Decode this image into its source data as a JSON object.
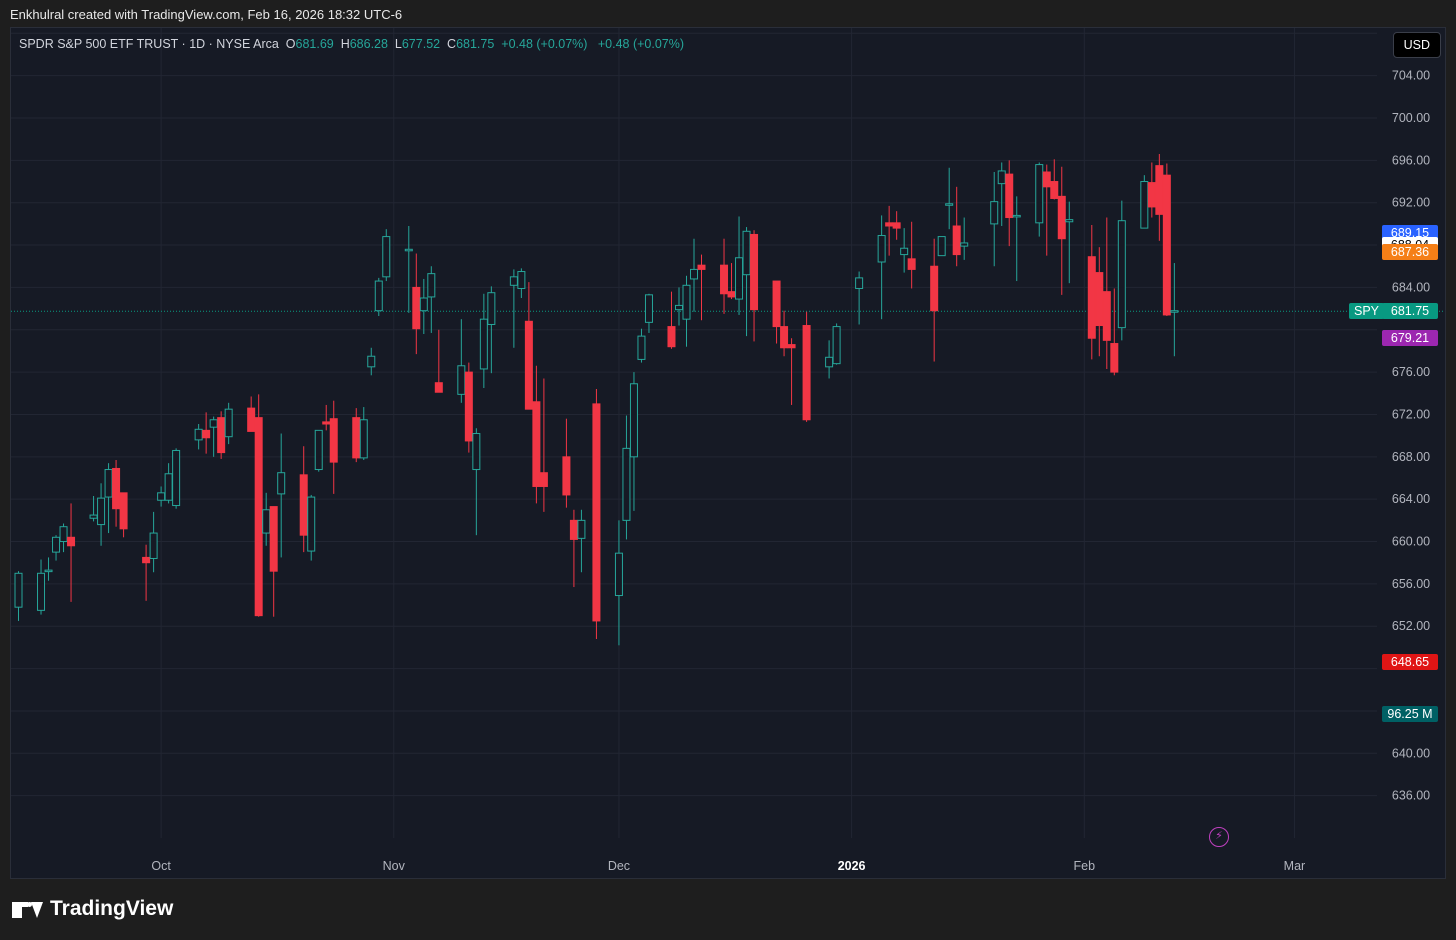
{
  "credit": "Enkhulral created with TradingView.com, Feb 16, 2026 18:32 UTC-6",
  "legend": {
    "title": "SPDR S&P 500 ETF TRUST · 1D · NYSE Arca",
    "o_label": "O",
    "o_value": "681.69",
    "h_label": "H",
    "h_value": "686.28",
    "l_label": "L",
    "l_value": "677.52",
    "c_label": "C",
    "c_value": "681.75",
    "change1": "+0.48 (+0.07%)",
    "change2": "+0.48 (+0.07%)"
  },
  "currency": "USD",
  "brand": "TradingView",
  "colors": {
    "up": "#26a69a",
    "down": "#f23645",
    "background": "#161a25",
    "grid": "#222633"
  },
  "price_tags": [
    {
      "label": "689.15",
      "value": 689.15,
      "bg": "#2962ff",
      "fg": "#ffffff"
    },
    {
      "label": "688.04",
      "value": 688.04,
      "bg": "#ffffff",
      "fg": "#000000"
    },
    {
      "label": "687.36",
      "value": 687.36,
      "bg": "#f57f17",
      "fg": "#ffffff"
    },
    {
      "label": "681.75",
      "value": 681.75,
      "bg": "#089981",
      "fg": "#ffffff",
      "name": "SPY"
    },
    {
      "label": "679.21",
      "value": 679.21,
      "bg": "#9c27b0",
      "fg": "#ffffff"
    },
    {
      "label": "648.65",
      "value": 648.65,
      "bg": "#e01515",
      "fg": "#ffffff"
    },
    {
      "label": "96.25 M",
      "value": 643.7,
      "bg": "#006064",
      "fg": "#ffffff"
    }
  ],
  "chart_data": {
    "type": "candlestick",
    "title": "SPDR S&P 500 ETF TRUST · 1D · NYSE Arca",
    "y_range": [
      632.0,
      708.5
    ],
    "y_ticks": [
      636,
      640,
      652,
      656,
      660,
      664,
      668,
      672,
      676,
      684,
      692,
      696,
      700,
      704
    ],
    "y_tick_labels": [
      "636.00",
      "640.00",
      "652.00",
      "656.00",
      "660.00",
      "664.00",
      "668.00",
      "672.00",
      "676.00",
      "684.00",
      "692.00",
      "696.00",
      "700.00",
      "704.00"
    ],
    "x_ticks": [
      {
        "label": "Oct",
        "date": "2025-10-01"
      },
      {
        "label": "Nov",
        "date": "2025-11-01"
      },
      {
        "label": "Dec",
        "date": "2025-12-01"
      },
      {
        "label": "2026",
        "date": "2026-01-01",
        "bold": true
      },
      {
        "label": "Feb",
        "date": "2026-02-01"
      },
      {
        "label": "Mar",
        "date": "2026-03-01"
      }
    ],
    "x_range": [
      "2025-09-11",
      "2026-03-12"
    ],
    "last_price": 681.75,
    "candles": [
      {
        "d": "2025-09-12",
        "o": 653.8,
        "h": 657.2,
        "l": 652.5,
        "c": 657.0
      },
      {
        "d": "2025-09-15",
        "o": 653.5,
        "h": 658.3,
        "l": 653.1,
        "c": 657.0
      },
      {
        "d": "2025-09-16",
        "o": 657.2,
        "h": 658.5,
        "l": 656.3,
        "c": 657.3
      },
      {
        "d": "2025-09-17",
        "o": 659.0,
        "h": 660.6,
        "l": 658.2,
        "c": 660.4
      },
      {
        "d": "2025-09-18",
        "o": 660.0,
        "h": 661.7,
        "l": 659.0,
        "c": 661.4
      },
      {
        "d": "2025-09-19",
        "o": 660.4,
        "h": 663.6,
        "l": 654.3,
        "c": 659.6
      },
      {
        "d": "2025-09-22",
        "o": 662.2,
        "h": 664.3,
        "l": 661.9,
        "c": 662.5
      },
      {
        "d": "2025-09-23",
        "o": 661.6,
        "h": 665.5,
        "l": 659.6,
        "c": 664.1
      },
      {
        "d": "2025-09-24",
        "o": 664.2,
        "h": 667.4,
        "l": 660.8,
        "c": 666.8
      },
      {
        "d": "2025-09-25",
        "o": 666.9,
        "h": 667.7,
        "l": 661.4,
        "c": 663.1
      },
      {
        "d": "2025-09-26",
        "o": 664.6,
        "h": 664.6,
        "l": 660.4,
        "c": 661.2
      },
      {
        "d": "2025-09-29",
        "o": 658.5,
        "h": 659.7,
        "l": 654.4,
        "c": 658.0
      },
      {
        "d": "2025-09-30",
        "o": 658.4,
        "h": 662.8,
        "l": 657.1,
        "c": 660.8
      },
      {
        "d": "2025-10-01",
        "o": 663.9,
        "h": 665.2,
        "l": 663.3,
        "c": 664.6
      },
      {
        "d": "2025-10-02",
        "o": 663.9,
        "h": 667.4,
        "l": 663.6,
        "c": 666.4
      },
      {
        "d": "2025-10-03",
        "o": 663.4,
        "h": 668.8,
        "l": 663.1,
        "c": 668.6
      },
      {
        "d": "2025-10-06",
        "o": 669.6,
        "h": 671.1,
        "l": 668.7,
        "c": 670.6
      },
      {
        "d": "2025-10-07",
        "o": 670.5,
        "h": 672.2,
        "l": 668.3,
        "c": 669.8
      },
      {
        "d": "2025-10-08",
        "o": 670.8,
        "h": 671.8,
        "l": 668.0,
        "c": 671.5
      },
      {
        "d": "2025-10-09",
        "o": 671.7,
        "h": 672.3,
        "l": 667.8,
        "c": 668.4
      },
      {
        "d": "2025-10-10",
        "o": 669.9,
        "h": 673.1,
        "l": 669.2,
        "c": 672.5
      },
      {
        "d": "2025-10-13",
        "o": 672.6,
        "h": 673.7,
        "l": 670.6,
        "c": 670.4
      },
      {
        "d": "2025-10-14",
        "o": 671.7,
        "h": 673.9,
        "l": 652.9,
        "c": 653.0
      },
      {
        "d": "2025-10-15",
        "o": 660.8,
        "h": 664.6,
        "l": 659.6,
        "c": 663.0
      },
      {
        "d": "2025-10-16",
        "o": 663.3,
        "h": 662.7,
        "l": 652.9,
        "c": 657.2
      },
      {
        "d": "2025-10-17",
        "o": 664.5,
        "h": 670.2,
        "l": 658.5,
        "c": 666.5
      },
      {
        "d": "2025-10-20",
        "o": 666.3,
        "h": 669.0,
        "l": 659.0,
        "c": 660.6
      },
      {
        "d": "2025-10-21",
        "o": 659.1,
        "h": 664.4,
        "l": 658.2,
        "c": 664.2
      },
      {
        "d": "2025-10-22",
        "o": 666.8,
        "h": 670.5,
        "l": 666.6,
        "c": 670.5
      },
      {
        "d": "2025-10-23",
        "o": 671.3,
        "h": 672.9,
        "l": 670.5,
        "c": 671.1
      },
      {
        "d": "2025-10-24",
        "o": 671.6,
        "h": 673.3,
        "l": 664.5,
        "c": 667.5
      },
      {
        "d": "2025-10-27",
        "o": 671.7,
        "h": 672.6,
        "l": 667.5,
        "c": 667.9
      },
      {
        "d": "2025-10-28",
        "o": 667.9,
        "h": 672.7,
        "l": 667.7,
        "c": 671.5
      },
      {
        "d": "2025-10-29",
        "o": 676.5,
        "h": 678.3,
        "l": 675.7,
        "c": 677.5
      },
      {
        "d": "2025-10-30",
        "o": 681.8,
        "h": 684.9,
        "l": 681.3,
        "c": 684.6
      },
      {
        "d": "2025-10-31",
        "o": 685.0,
        "h": 689.5,
        "l": 684.6,
        "c": 688.8
      },
      {
        "d": "2025-11-03",
        "o": 687.6,
        "h": 689.8,
        "l": 681.6,
        "c": 687.6
      },
      {
        "d": "2025-11-04",
        "o": 684.0,
        "h": 687.2,
        "l": 677.7,
        "c": 680.1
      },
      {
        "d": "2025-11-05",
        "o": 681.8,
        "h": 684.8,
        "l": 679.6,
        "c": 683.0
      },
      {
        "d": "2025-11-06",
        "o": 683.1,
        "h": 686.0,
        "l": 679.7,
        "c": 685.3
      },
      {
        "d": "2025-11-07",
        "o": 675.0,
        "h": 680.0,
        "l": 674.1,
        "c": 674.1
      },
      {
        "d": "2025-11-10",
        "o": 673.9,
        "h": 681.0,
        "l": 673.1,
        "c": 676.6
      },
      {
        "d": "2025-11-11",
        "o": 676.0,
        "h": 676.9,
        "l": 668.4,
        "c": 669.5
      },
      {
        "d": "2025-11-12",
        "o": 666.8,
        "h": 670.7,
        "l": 660.6,
        "c": 670.2
      },
      {
        "d": "2025-11-13",
        "o": 676.3,
        "h": 683.4,
        "l": 674.5,
        "c": 681.0
      },
      {
        "d": "2025-11-14",
        "o": 680.5,
        "h": 684.1,
        "l": 675.9,
        "c": 683.5
      },
      {
        "d": "2025-11-17",
        "o": 684.2,
        "h": 685.7,
        "l": 678.3,
        "c": 685.0
      },
      {
        "d": "2025-11-18",
        "o": 683.9,
        "h": 685.8,
        "l": 683.0,
        "c": 685.5
      },
      {
        "d": "2025-11-19",
        "o": 680.8,
        "h": 684.5,
        "l": 672.8,
        "c": 672.5
      },
      {
        "d": "2025-11-20",
        "o": 673.2,
        "h": 676.6,
        "l": 663.6,
        "c": 665.2
      },
      {
        "d": "2025-11-21",
        "o": 666.5,
        "h": 675.4,
        "l": 662.8,
        "c": 665.2
      },
      {
        "d": "2025-11-24",
        "o": 668.0,
        "h": 671.6,
        "l": 663.2,
        "c": 664.4
      },
      {
        "d": "2025-11-25",
        "o": 662.0,
        "h": 663.0,
        "l": 655.7,
        "c": 660.2
      },
      {
        "d": "2025-11-26",
        "o": 660.3,
        "h": 663.0,
        "l": 657.1,
        "c": 662.0
      },
      {
        "d": "2025-11-28",
        "o": 673.0,
        "h": 674.4,
        "l": 650.8,
        "c": 652.5
      },
      {
        "d": "2025-12-01",
        "o": 654.9,
        "h": 662.0,
        "l": 650.2,
        "c": 658.9
      },
      {
        "d": "2025-12-02",
        "o": 662.0,
        "h": 671.9,
        "l": 660.2,
        "c": 668.8
      },
      {
        "d": "2025-12-03",
        "o": 668.0,
        "h": 676.0,
        "l": 662.9,
        "c": 674.9
      },
      {
        "d": "2025-12-04",
        "o": 677.2,
        "h": 680.1,
        "l": 676.9,
        "c": 679.4
      },
      {
        "d": "2025-12-05",
        "o": 680.7,
        "h": 683.4,
        "l": 679.7,
        "c": 683.3
      },
      {
        "d": "2025-12-08",
        "o": 680.3,
        "h": 683.6,
        "l": 678.2,
        "c": 678.4
      },
      {
        "d": "2025-12-09",
        "o": 681.9,
        "h": 684.0,
        "l": 680.4,
        "c": 682.3
      },
      {
        "d": "2025-12-10",
        "o": 681.0,
        "h": 685.1,
        "l": 678.4,
        "c": 684.2
      },
      {
        "d": "2025-12-11",
        "o": 684.8,
        "h": 688.6,
        "l": 681.7,
        "c": 685.7
      },
      {
        "d": "2025-12-12",
        "o": 686.1,
        "h": 687.1,
        "l": 680.9,
        "c": 685.7
      },
      {
        "d": "2025-12-15",
        "o": 686.1,
        "h": 688.6,
        "l": 681.5,
        "c": 683.4
      },
      {
        "d": "2025-12-16",
        "o": 683.6,
        "h": 686.3,
        "l": 682.9,
        "c": 683.1
      },
      {
        "d": "2025-12-17",
        "o": 682.9,
        "h": 690.7,
        "l": 681.4,
        "c": 686.8
      },
      {
        "d": "2025-12-18",
        "o": 685.2,
        "h": 689.7,
        "l": 679.4,
        "c": 689.3
      },
      {
        "d": "2025-12-19",
        "o": 689.0,
        "h": 689.4,
        "l": 678.9,
        "c": 681.9
      },
      {
        "d": "2025-12-22",
        "o": 684.6,
        "h": 684.6,
        "l": 678.7,
        "c": 680.3
      },
      {
        "d": "2025-12-23",
        "o": 680.3,
        "h": 681.8,
        "l": 677.5,
        "c": 678.3
      },
      {
        "d": "2025-12-24",
        "o": 678.6,
        "h": 679.2,
        "l": 672.9,
        "c": 678.3
      },
      {
        "d": "2025-12-26",
        "o": 680.4,
        "h": 681.7,
        "l": 671.3,
        "c": 671.5
      },
      {
        "d": "2025-12-29",
        "o": 676.5,
        "h": 679.0,
        "l": 675.4,
        "c": 677.4
      },
      {
        "d": "2025-12-30",
        "o": 676.8,
        "h": 680.6,
        "l": 676.7,
        "c": 680.3
      },
      {
        "d": "2026-01-02",
        "o": 683.9,
        "h": 685.5,
        "l": 680.5,
        "c": 684.9
      },
      {
        "d": "2026-01-05",
        "o": 686.4,
        "h": 690.8,
        "l": 681.0,
        "c": 688.9
      },
      {
        "d": "2026-01-06",
        "o": 690.1,
        "h": 691.7,
        "l": 687.0,
        "c": 689.8
      },
      {
        "d": "2026-01-07",
        "o": 690.1,
        "h": 691.2,
        "l": 688.5,
        "c": 689.6
      },
      {
        "d": "2026-01-08",
        "o": 687.1,
        "h": 689.6,
        "l": 685.4,
        "c": 687.7
      },
      {
        "d": "2026-01-09",
        "o": 686.7,
        "h": 690.2,
        "l": 683.9,
        "c": 685.7
      },
      {
        "d": "2026-01-12",
        "o": 686.0,
        "h": 688.6,
        "l": 677.0,
        "c": 681.8
      },
      {
        "d": "2026-01-13",
        "o": 687.0,
        "h": 688.8,
        "l": 687.0,
        "c": 688.8
      },
      {
        "d": "2026-01-14",
        "o": 691.9,
        "h": 695.3,
        "l": 689.5,
        "c": 691.9
      },
      {
        "d": "2026-01-15",
        "o": 689.8,
        "h": 693.5,
        "l": 686.0,
        "c": 687.1
      },
      {
        "d": "2026-01-16",
        "o": 687.9,
        "h": 690.6,
        "l": 686.6,
        "c": 688.2
      },
      {
        "d": "2026-01-20",
        "o": 690.0,
        "h": 694.9,
        "l": 686.0,
        "c": 692.1
      },
      {
        "d": "2026-01-21",
        "o": 693.8,
        "h": 695.8,
        "l": 689.8,
        "c": 695.0
      },
      {
        "d": "2026-01-22",
        "o": 694.7,
        "h": 696.0,
        "l": 687.9,
        "c": 690.6
      },
      {
        "d": "2026-01-23",
        "o": 690.8,
        "h": 692.6,
        "l": 684.6,
        "c": 690.8
      },
      {
        "d": "2026-01-26",
        "o": 690.1,
        "h": 695.8,
        "l": 688.8,
        "c": 695.6
      },
      {
        "d": "2026-01-27",
        "o": 694.9,
        "h": 695.6,
        "l": 687.0,
        "c": 693.5
      },
      {
        "d": "2026-01-28",
        "o": 694.0,
        "h": 696.1,
        "l": 692.3,
        "c": 692.4
      },
      {
        "d": "2026-01-29",
        "o": 692.6,
        "h": 695.4,
        "l": 683.3,
        "c": 688.6
      },
      {
        "d": "2026-01-30",
        "o": 690.2,
        "h": 692.1,
        "l": 684.4,
        "c": 690.4
      },
      {
        "d": "2026-02-02",
        "o": 686.9,
        "h": 689.9,
        "l": 677.2,
        "c": 679.2
      },
      {
        "d": "2026-02-03",
        "o": 685.4,
        "h": 687.8,
        "l": 677.5,
        "c": 680.4
      },
      {
        "d": "2026-02-04",
        "o": 683.6,
        "h": 690.6,
        "l": 676.3,
        "c": 679.0
      },
      {
        "d": "2026-02-05",
        "o": 678.7,
        "h": 683.9,
        "l": 675.7,
        "c": 676.0
      },
      {
        "d": "2026-02-06",
        "o": 680.2,
        "h": 692.2,
        "l": 679.0,
        "c": 690.3
      },
      {
        "d": "2026-02-09",
        "o": 689.6,
        "h": 694.6,
        "l": 689.7,
        "c": 694.0
      },
      {
        "d": "2026-02-10",
        "o": 693.9,
        "h": 695.8,
        "l": 690.6,
        "c": 691.6
      },
      {
        "d": "2026-02-11",
        "o": 695.5,
        "h": 696.6,
        "l": 688.4,
        "c": 690.9
      },
      {
        "d": "2026-02-12",
        "o": 694.6,
        "h": 695.7,
        "l": 681.3,
        "c": 681.4
      },
      {
        "d": "2026-02-13",
        "o": 681.7,
        "h": 686.3,
        "l": 677.5,
        "c": 681.8
      }
    ]
  }
}
